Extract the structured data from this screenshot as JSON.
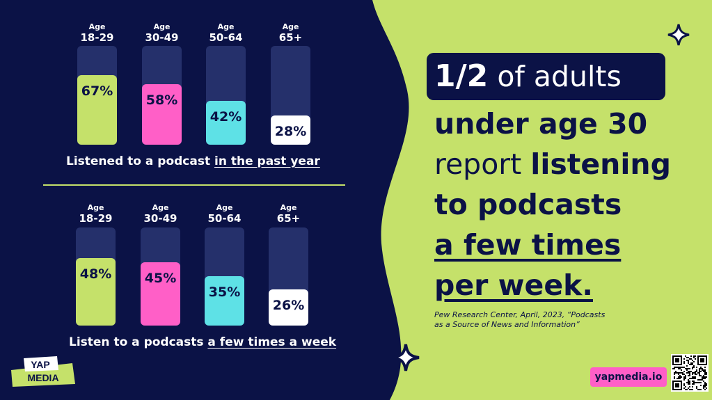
{
  "chart_data": [
    {
      "type": "bar",
      "categories": [
        "18-29",
        "30-49",
        "50-64",
        "65+"
      ],
      "category_prefix": "Age",
      "values": [
        67,
        58,
        42,
        28
      ],
      "value_labels": [
        "67%",
        "58%",
        "42%",
        "28%"
      ],
      "title_plain": "Listened to a podcast ",
      "title_underlined": "in the past year",
      "ylim": [
        0,
        100
      ],
      "colors": [
        "#c5e16a",
        "#ff5fc7",
        "#5ee1e6",
        "#ffffff"
      ]
    },
    {
      "type": "bar",
      "categories": [
        "18-29",
        "30-49",
        "50-64",
        "65+"
      ],
      "category_prefix": "Age",
      "values": [
        48,
        45,
        35,
        26
      ],
      "value_labels": [
        "48%",
        "45%",
        "35%",
        "26%"
      ],
      "title_plain": "Listen to a podcasts ",
      "title_underlined": "a few times a week",
      "ylim": [
        0,
        100
      ],
      "colors": [
        "#c5e16a",
        "#ff5fc7",
        "#5ee1e6",
        "#ffffff"
      ]
    }
  ],
  "headline": {
    "fraction": "1/2",
    "line1_rest": " of adults",
    "line2": "under age 30",
    "line3_light": "report ",
    "line3_bold": "listening",
    "line4": "to podcasts",
    "line5": "a few times",
    "line6": "per week."
  },
  "source": {
    "line1": "Pew Research Center, April, 2023, “Podcasts",
    "line2": "as a Source of News and Information”"
  },
  "brand": {
    "logo_line1": "YAP",
    "logo_line2": "MEDIA",
    "url": "yapmedia.io"
  },
  "colors": {
    "navy": "#0b1246",
    "lime": "#c5e16a",
    "pink": "#ff5fc7",
    "cyan": "#5ee1e6",
    "track": "#25306b"
  }
}
